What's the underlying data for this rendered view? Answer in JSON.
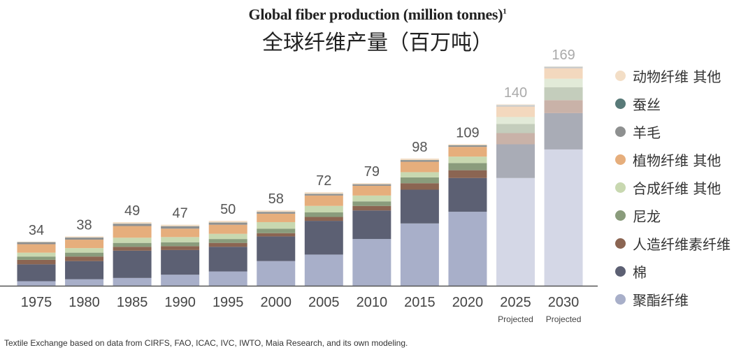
{
  "chart_data": {
    "type": "bar",
    "stacked": true,
    "title": "Global fiber production (million tonnes)",
    "title_superscript": "1",
    "subtitle": "全球纤维产量（百万吨）",
    "categories": [
      "1975",
      "1980",
      "1985",
      "1990",
      "1995",
      "2000",
      "2005",
      "2010",
      "2015",
      "2020",
      "2025",
      "2030"
    ],
    "category_notes": [
      "",
      "",
      "",
      "",
      "",
      "",
      "",
      "",
      "",
      "",
      "Projected",
      "Projected"
    ],
    "totals": [
      34,
      38,
      49,
      47,
      50,
      58,
      72,
      79,
      98,
      109,
      140,
      169
    ],
    "projected_from_index": 10,
    "series": [
      {
        "name": "聚酯纤维",
        "color": "#a8afc9",
        "projected_color": "#d4d7e6",
        "values": [
          3.5,
          5,
          6,
          8.5,
          11,
          19,
          24,
          36,
          48,
          57,
          83,
          105
        ]
      },
      {
        "name": "棉",
        "color": "#5c6073",
        "projected_color": "#a9acb6",
        "values": [
          13,
          14,
          21,
          19,
          19,
          19,
          26,
          22,
          26,
          26,
          26,
          28
        ]
      },
      {
        "name": "人造纤维素纤维",
        "color": "#8b6552",
        "projected_color": "#c9b2a8",
        "values": [
          3.5,
          3.5,
          3,
          3,
          3,
          2.5,
          3,
          3.5,
          5,
          6,
          8.6,
          10
        ]
      },
      {
        "name": "尼龙",
        "color": "#8a9c7c",
        "projected_color": "#c4cdbc",
        "values": [
          2.5,
          3,
          3,
          3,
          3,
          3.5,
          3.5,
          3.5,
          4.5,
          5.5,
          7,
          10
        ]
      },
      {
        "name": "合成纤维 其他",
        "color": "#c8d8b0",
        "projected_color": "#e2ead8",
        "values": [
          3,
          3.5,
          4,
          4,
          4,
          5,
          5,
          4.5,
          4,
          5,
          5.4,
          6.5
        ]
      },
      {
        "name": "植物纤维 其他",
        "color": "#e6ae7c",
        "projected_color": "#f3d8be",
        "values": [
          6.5,
          6.5,
          9,
          6.5,
          7,
          6.5,
          8,
          7.5,
          8,
          7.5,
          8,
          8
        ]
      },
      {
        "name": "羊毛",
        "color": "#8e9090",
        "projected_color": "#c8c8c8",
        "values": [
          1.5,
          1.6,
          1.7,
          1.8,
          1.6,
          1.3,
          1.2,
          1.1,
          1.1,
          1,
          1,
          1
        ]
      },
      {
        "name": "蚕丝",
        "color": "#587a78",
        "projected_color": "#a8bcba",
        "values": [
          0.1,
          0.1,
          0.1,
          0.1,
          0.1,
          0.1,
          0.1,
          0.1,
          0.2,
          0.2,
          0.2,
          0.2
        ]
      },
      {
        "name": "动物纤维 其他",
        "color": "#f3dec6",
        "projected_color": "#f8ece0",
        "values": [
          0.4,
          0.8,
          1.2,
          1.1,
          1.3,
          1.1,
          1.2,
          0.8,
          1.2,
          0.8,
          0.8,
          0.3
        ]
      }
    ],
    "legend_order": [
      8,
      7,
      6,
      5,
      4,
      3,
      2,
      1,
      0
    ],
    "legend_placement": "right",
    "ylim": [
      0,
      170
    ],
    "grid": false,
    "xlabel": "",
    "ylabel": ""
  },
  "source": "Textile Exchange based on data from CIRFS, FAO, ICAC, IVC, IWTO, Maia Research, and its own modeling."
}
